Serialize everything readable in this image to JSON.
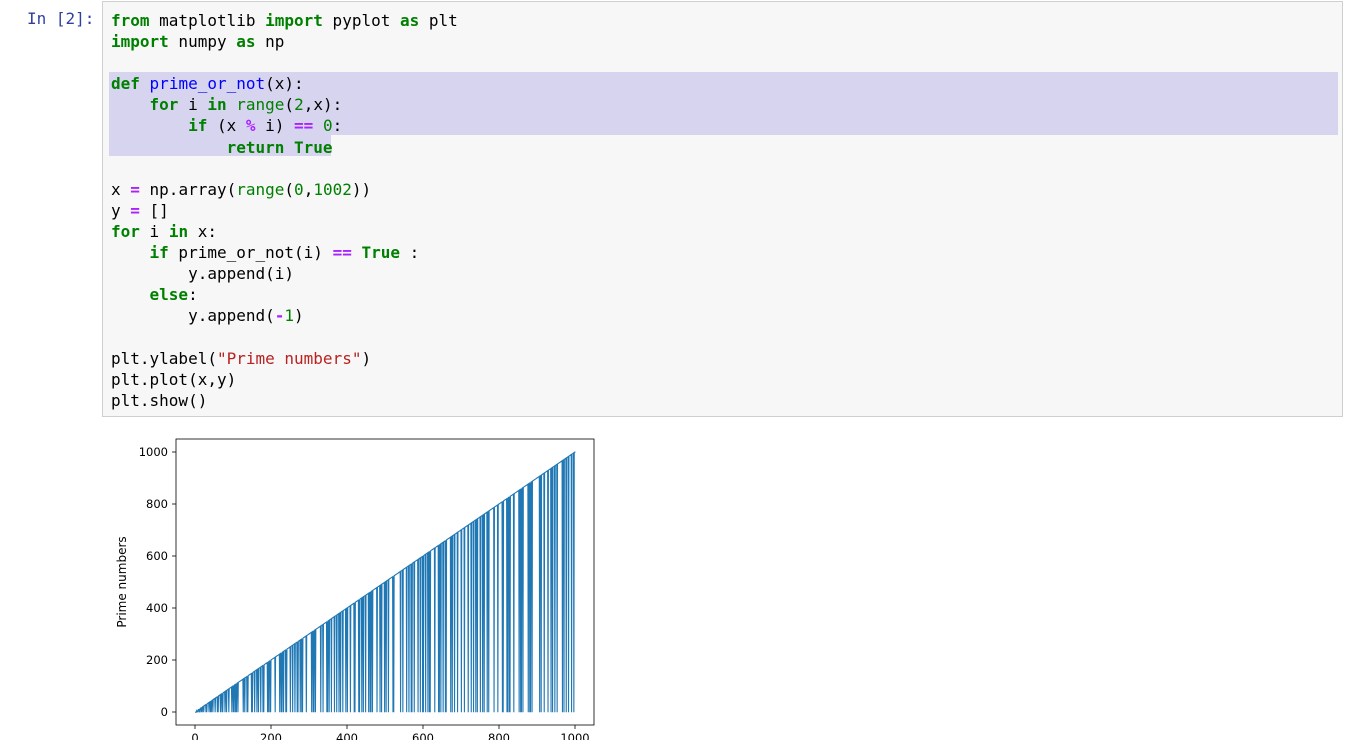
{
  "cell": {
    "prompt": "In [2]:",
    "code_lines": [
      [
        {
          "t": "from",
          "c": "kw"
        },
        {
          "t": " matplotlib "
        },
        {
          "t": "import",
          "c": "kw"
        },
        {
          "t": " pyplot "
        },
        {
          "t": "as",
          "c": "kw"
        },
        {
          "t": " plt"
        }
      ],
      [
        {
          "t": "import",
          "c": "kw"
        },
        {
          "t": " numpy "
        },
        {
          "t": "as",
          "c": "kw"
        },
        {
          "t": " np"
        }
      ],
      [],
      [
        {
          "t": "def",
          "c": "kw"
        },
        {
          "t": " "
        },
        {
          "t": "prime_or_not",
          "c": "fn"
        },
        {
          "t": "(x):"
        }
      ],
      [
        {
          "t": "    "
        },
        {
          "t": "for",
          "c": "kw"
        },
        {
          "t": " i "
        },
        {
          "t": "in",
          "c": "kw"
        },
        {
          "t": " "
        },
        {
          "t": "range",
          "c": "bi"
        },
        {
          "t": "("
        },
        {
          "t": "2",
          "c": "num"
        },
        {
          "t": ",x):"
        }
      ],
      [
        {
          "t": "        "
        },
        {
          "t": "if",
          "c": "kw"
        },
        {
          "t": " (x "
        },
        {
          "t": "%",
          "c": "op"
        },
        {
          "t": " i) "
        },
        {
          "t": "==",
          "c": "op"
        },
        {
          "t": " "
        },
        {
          "t": "0",
          "c": "num"
        },
        {
          "t": ":"
        }
      ],
      [
        {
          "t": "            "
        },
        {
          "t": "return",
          "c": "kw"
        },
        {
          "t": " "
        },
        {
          "t": "True",
          "c": "kw"
        }
      ],
      [],
      [
        {
          "t": "x "
        },
        {
          "t": "=",
          "c": "op"
        },
        {
          "t": " np.array("
        },
        {
          "t": "range",
          "c": "bi"
        },
        {
          "t": "("
        },
        {
          "t": "0",
          "c": "num"
        },
        {
          "t": ","
        },
        {
          "t": "1002",
          "c": "num"
        },
        {
          "t": "))"
        }
      ],
      [
        {
          "t": "y "
        },
        {
          "t": "=",
          "c": "op"
        },
        {
          "t": " []"
        }
      ],
      [
        {
          "t": "for",
          "c": "kw"
        },
        {
          "t": " i "
        },
        {
          "t": "in",
          "c": "kw"
        },
        {
          "t": " x:"
        }
      ],
      [
        {
          "t": "    "
        },
        {
          "t": "if",
          "c": "kw"
        },
        {
          "t": " prime_or_not(i) "
        },
        {
          "t": "==",
          "c": "op"
        },
        {
          "t": " "
        },
        {
          "t": "True",
          "c": "kw"
        },
        {
          "t": " :"
        }
      ],
      [
        {
          "t": "        y.append(i)"
        }
      ],
      [
        {
          "t": "    "
        },
        {
          "t": "else",
          "c": "kw"
        },
        {
          "t": ":"
        }
      ],
      [
        {
          "t": "        y.append("
        },
        {
          "t": "-",
          "c": "op"
        },
        {
          "t": "1",
          "c": "num"
        },
        {
          "t": ")"
        }
      ],
      [],
      [
        {
          "t": "plt.ylabel("
        },
        {
          "t": "\"Prime numbers\"",
          "c": "str"
        },
        {
          "t": ")"
        }
      ],
      [
        {
          "t": "plt.plot(x,y)"
        }
      ],
      [
        {
          "t": "plt.show()"
        }
      ]
    ]
  },
  "chart_data": {
    "type": "line",
    "title": "",
    "xlabel": "",
    "ylabel": "Prime numbers",
    "xlim": [
      -50,
      1050
    ],
    "ylim": [
      -50,
      1050
    ],
    "xticks": [
      0,
      200,
      400,
      600,
      800,
      1000
    ],
    "yticks": [
      0,
      200,
      400,
      600,
      800,
      1000
    ],
    "series": [
      {
        "color": "#1f77b4",
        "x_range": [
          0,
          1001
        ],
        "rule": "y = x when x is composite (x has a divisor in 2..x-1), otherwise y = -1"
      }
    ]
  }
}
